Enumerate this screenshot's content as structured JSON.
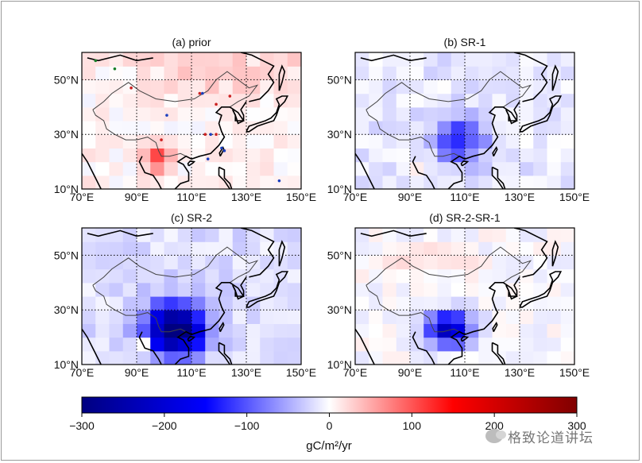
{
  "chart_data": [
    {
      "type": "heatmap",
      "panel": "a",
      "title": "(a) prior",
      "x_ticks": [
        "70°E",
        "90°E",
        "110°E",
        "130°E",
        "150°E"
      ],
      "y_ticks": [
        "50°N",
        "30°N",
        "10°N"
      ],
      "xlim": [
        70,
        150
      ],
      "ylim": [
        10,
        60
      ],
      "grid": true
    },
    {
      "type": "heatmap",
      "panel": "b",
      "title": "(b) SR-1",
      "x_ticks": [
        "70°E",
        "90°E",
        "110°E",
        "130°E",
        "150°E"
      ],
      "y_ticks": [
        "50°N",
        "30°N",
        "10°N"
      ],
      "xlim": [
        70,
        150
      ],
      "ylim": [
        10,
        60
      ],
      "grid": true
    },
    {
      "type": "heatmap",
      "panel": "c",
      "title": "(c) SR-2",
      "x_ticks": [
        "70°E",
        "90°E",
        "110°E",
        "130°E",
        "150°E"
      ],
      "y_ticks": [
        "50°N",
        "30°N",
        "10°N"
      ],
      "xlim": [
        70,
        150
      ],
      "ylim": [
        10,
        60
      ],
      "grid": true
    },
    {
      "type": "heatmap",
      "panel": "d",
      "title": "(d) SR-2-SR-1",
      "x_ticks": [
        "70°E",
        "90°E",
        "110°E",
        "130°E",
        "150°E"
      ],
      "y_ticks": [
        "50°N",
        "30°N",
        "10°N"
      ],
      "xlim": [
        70,
        150
      ],
      "ylim": [
        10,
        60
      ],
      "grid": true
    }
  ],
  "colorbar": {
    "label": "gC/m²/yr",
    "min": -300,
    "max": 300,
    "ticks": [
      "-300",
      "-200",
      "-100",
      "0",
      "100",
      "200",
      "300"
    ],
    "colors": [
      "#000080",
      "#0000ff",
      "#ffffff",
      "#ff0000",
      "#800000"
    ]
  },
  "watermark": {
    "text": "格致论道讲坛",
    "icon": "wechat-icon"
  }
}
